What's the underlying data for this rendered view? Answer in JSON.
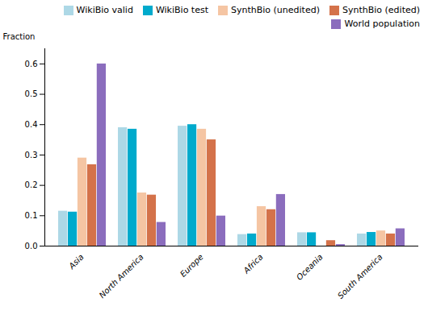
{
  "chart_data": {
    "type": "bar",
    "categories": [
      "Asia",
      "North America",
      "Europe",
      "Africa",
      "Oceania",
      "South America"
    ],
    "series": [
      {
        "name": "WikiBio valid",
        "color": "#add8e6",
        "values": [
          0.115,
          0.39,
          0.395,
          0.038,
          0.044,
          0.04
        ]
      },
      {
        "name": "WikiBio test",
        "color": "#00aacc",
        "values": [
          0.112,
          0.385,
          0.4,
          0.04,
          0.044,
          0.045
        ]
      },
      {
        "name": "SynthBio (unedited)",
        "color": "#f5c5a3",
        "values": [
          0.29,
          0.175,
          0.385,
          0.13,
          0.0,
          0.05
        ]
      },
      {
        "name": "SynthBio (edited)",
        "color": "#d4724a",
        "values": [
          0.268,
          0.168,
          0.35,
          0.12,
          0.018,
          0.04
        ]
      },
      {
        "name": "World population",
        "color": "#8b6dbd",
        "values": [
          0.6,
          0.078,
          0.099,
          0.17,
          0.005,
          0.057
        ]
      }
    ],
    "ylabel": "Fraction",
    "ylim": [
      0,
      0.65
    ],
    "yticks": [
      {
        "value": 0.0,
        "label": "0.0"
      },
      0.1,
      0.2,
      0.3,
      0.4,
      0.5,
      0.6
    ],
    "legend": "upper right"
  }
}
